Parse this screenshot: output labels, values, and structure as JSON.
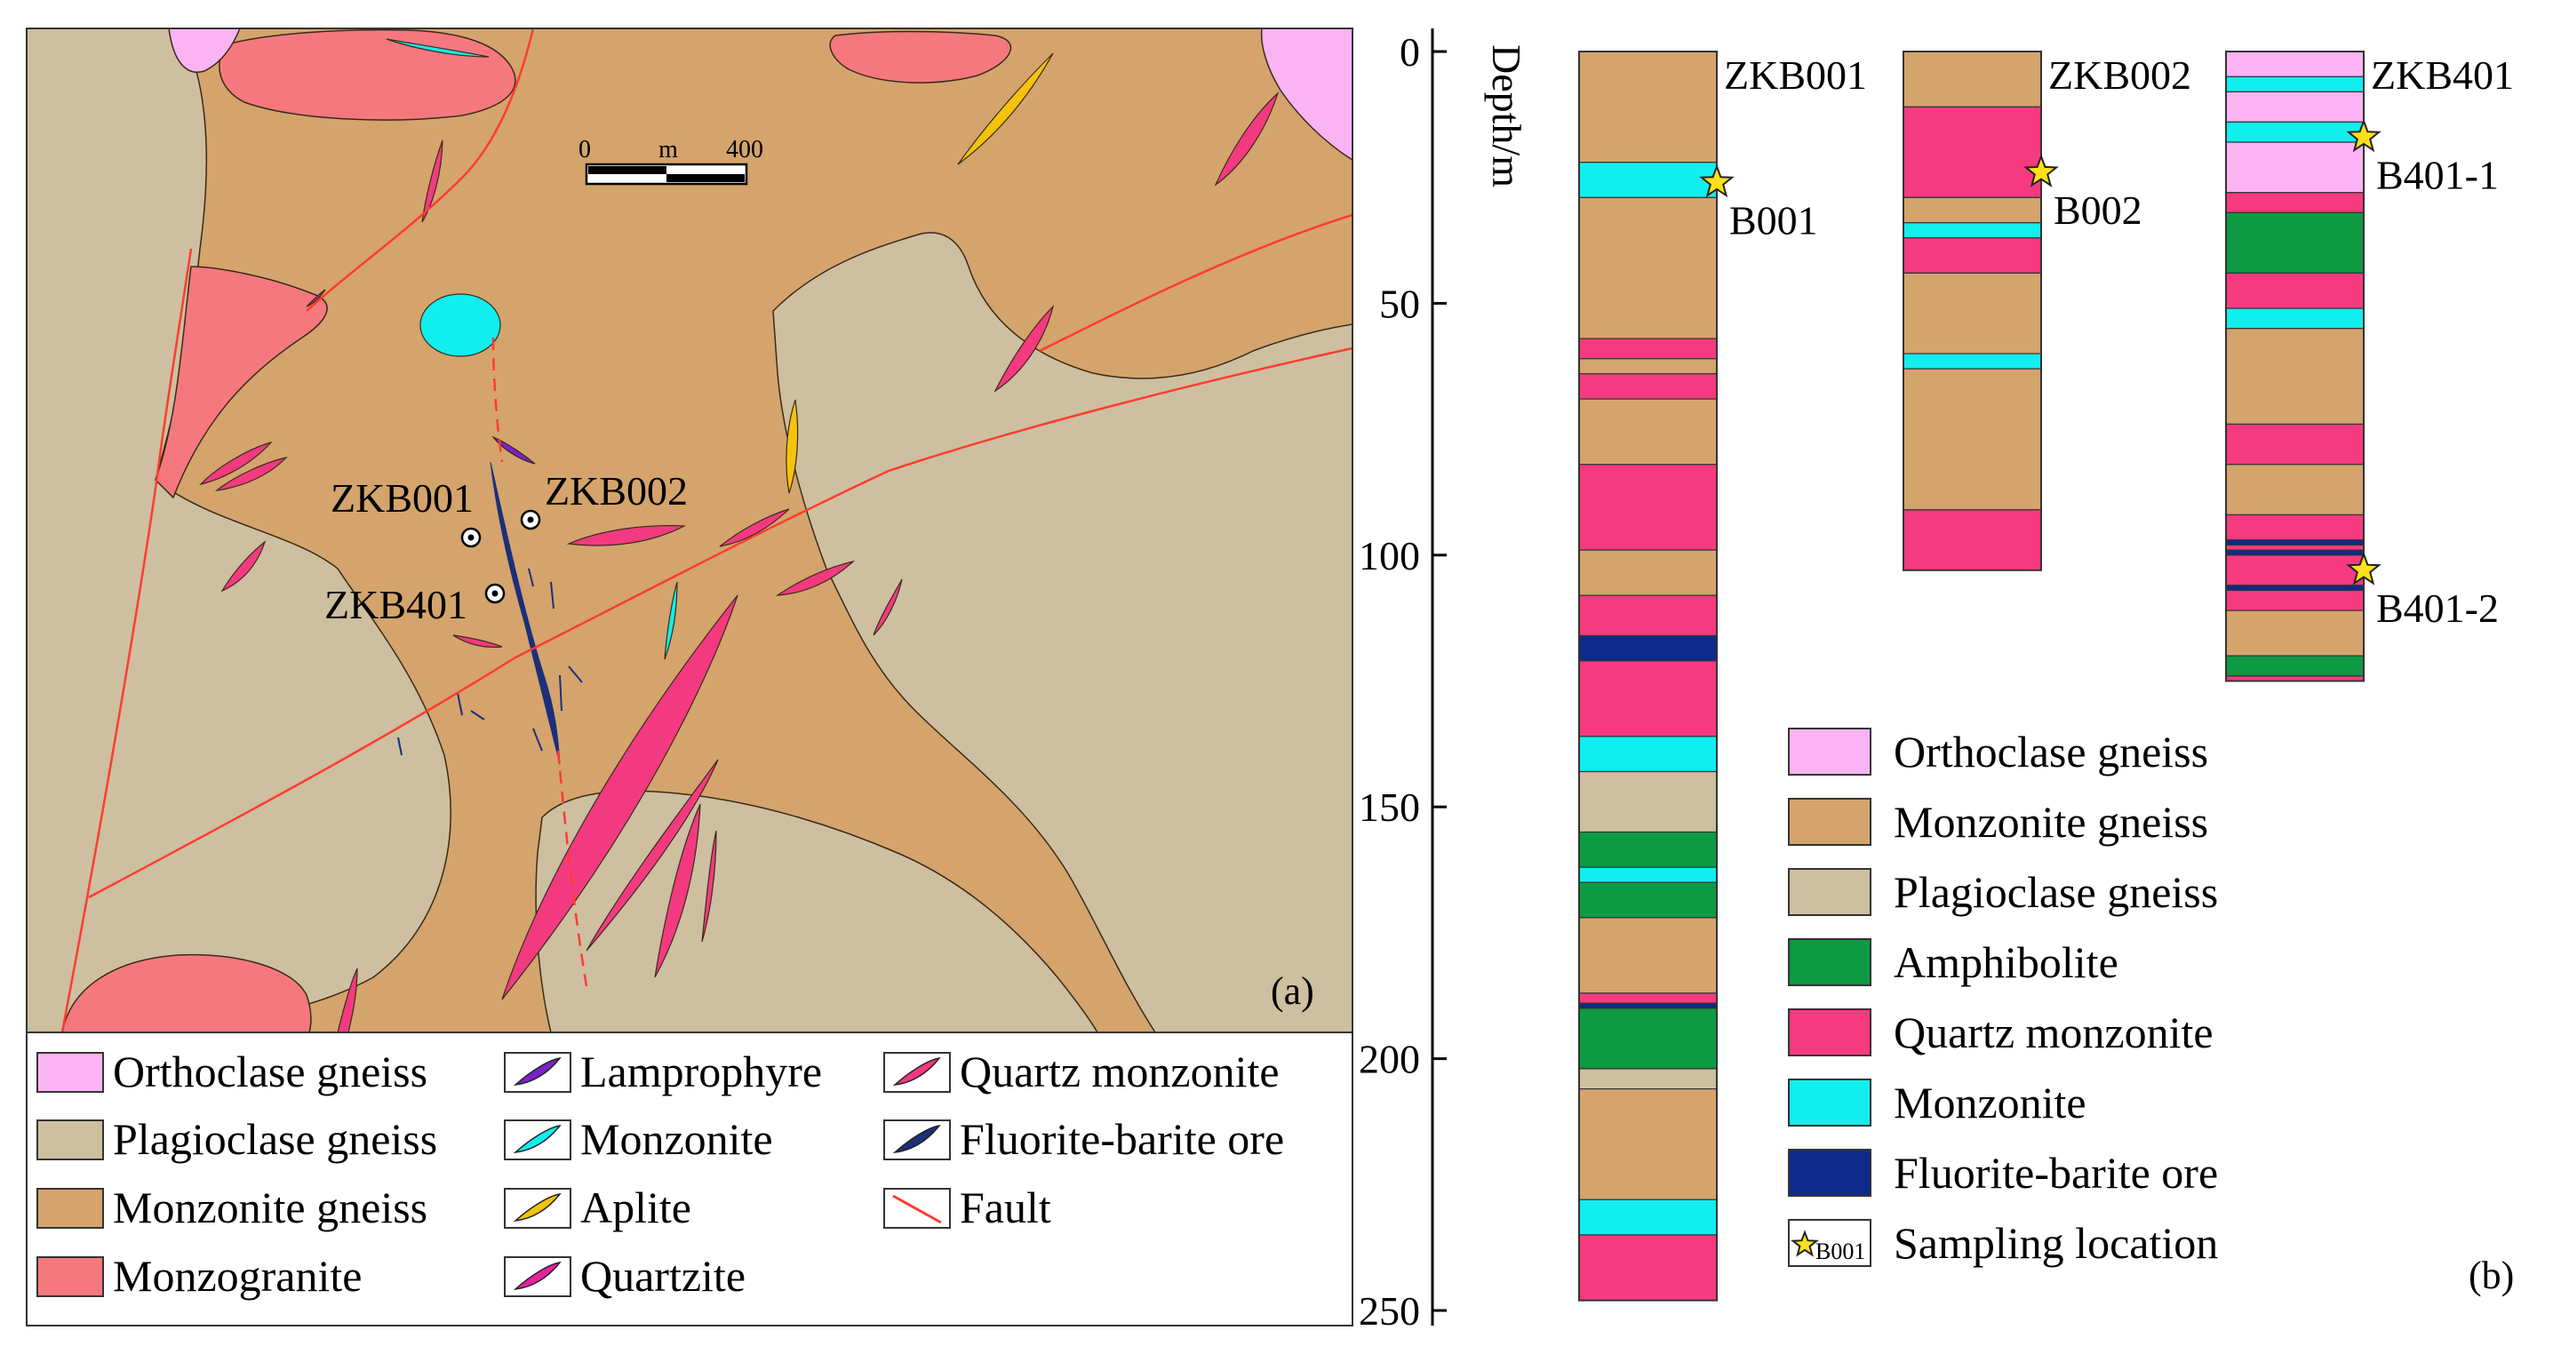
{
  "panel_a": {
    "label": "(a)",
    "scale_bar": {
      "start": "0",
      "unit": "m",
      "end": "400"
    },
    "drill_holes": [
      {
        "name": "ZKB001"
      },
      {
        "name": "ZKB002"
      },
      {
        "name": "ZKB401"
      }
    ],
    "legend": [
      {
        "label": "Orthoclase gneiss",
        "color": "#fbb3f4",
        "kind": "box"
      },
      {
        "label": "Plagioclase gneiss",
        "color": "#cdbf9f",
        "kind": "box"
      },
      {
        "label": "Monzonite gneiss",
        "color": "#d4a46c",
        "kind": "box"
      },
      {
        "label": "Monzogranite",
        "color": "#f6787f",
        "kind": "box"
      },
      {
        "label": "Lamprophyre",
        "color": "#7b22c8",
        "kind": "lens"
      },
      {
        "label": "Monzonite",
        "color": "#11eeee",
        "kind": "lens"
      },
      {
        "label": "Aplite",
        "color": "#f5c20c",
        "kind": "lens"
      },
      {
        "label": "Quartzite",
        "color": "#e7239e",
        "kind": "lens"
      },
      {
        "label": "Quartz monzonite",
        "color": "#f33a80",
        "kind": "lens"
      },
      {
        "label": "Fluorite-barite ore",
        "color": "#1b2f7a",
        "kind": "lens"
      },
      {
        "label": "Fault",
        "color": "#ff3b30",
        "kind": "line"
      }
    ]
  },
  "panel_b": {
    "label": "(b)",
    "axis_label": "Depth/m",
    "axis_ticks": [
      "0",
      "50",
      "100",
      "150",
      "200",
      "250"
    ],
    "depth_range": [
      0,
      250
    ],
    "columns": [
      {
        "name": "ZKB001",
        "total_depth": 248,
        "layers": [
          {
            "from": 0,
            "to": 22,
            "rock": "mg"
          },
          {
            "from": 22,
            "to": 29,
            "rock": "mz"
          },
          {
            "from": 29,
            "to": 57,
            "rock": "mg"
          },
          {
            "from": 57,
            "to": 61,
            "rock": "qm"
          },
          {
            "from": 61,
            "to": 64,
            "rock": "mg"
          },
          {
            "from": 64,
            "to": 69,
            "rock": "qm"
          },
          {
            "from": 69,
            "to": 82,
            "rock": "mg"
          },
          {
            "from": 82,
            "to": 99,
            "rock": "qm"
          },
          {
            "from": 99,
            "to": 108,
            "rock": "mg"
          },
          {
            "from": 108,
            "to": 116,
            "rock": "qm"
          },
          {
            "from": 116,
            "to": 121,
            "rock": "fb"
          },
          {
            "from": 121,
            "to": 136,
            "rock": "qm"
          },
          {
            "from": 136,
            "to": 143,
            "rock": "mz"
          },
          {
            "from": 143,
            "to": 155,
            "rock": "pg"
          },
          {
            "from": 155,
            "to": 162,
            "rock": "am"
          },
          {
            "from": 162,
            "to": 165,
            "rock": "mz"
          },
          {
            "from": 165,
            "to": 172,
            "rock": "am"
          },
          {
            "from": 172,
            "to": 187,
            "rock": "mg"
          },
          {
            "from": 187,
            "to": 189,
            "rock": "qm"
          },
          {
            "from": 189,
            "to": 190,
            "rock": "fb"
          },
          {
            "from": 190,
            "to": 202,
            "rock": "am"
          },
          {
            "from": 202,
            "to": 206,
            "rock": "pg"
          },
          {
            "from": 206,
            "to": 228,
            "rock": "mg"
          },
          {
            "from": 228,
            "to": 235,
            "rock": "mz"
          },
          {
            "from": 235,
            "to": 248,
            "rock": "qm"
          }
        ],
        "samples": [
          {
            "name": "B001",
            "depth": 26
          }
        ]
      },
      {
        "name": "ZKB002",
        "total_depth": 103,
        "layers": [
          {
            "from": 0,
            "to": 11,
            "rock": "mg"
          },
          {
            "from": 11,
            "to": 29,
            "rock": "qm"
          },
          {
            "from": 29,
            "to": 34,
            "rock": "mg"
          },
          {
            "from": 34,
            "to": 37,
            "rock": "mz"
          },
          {
            "from": 37,
            "to": 44,
            "rock": "qm"
          },
          {
            "from": 44,
            "to": 60,
            "rock": "mg"
          },
          {
            "from": 60,
            "to": 63,
            "rock": "mz"
          },
          {
            "from": 63,
            "to": 91,
            "rock": "mg"
          },
          {
            "from": 91,
            "to": 103,
            "rock": "qm"
          }
        ],
        "samples": [
          {
            "name": "B002",
            "depth": 24
          }
        ]
      },
      {
        "name": "ZKB401",
        "total_depth": 125,
        "layers": [
          {
            "from": 0,
            "to": 5,
            "rock": "og"
          },
          {
            "from": 5,
            "to": 8,
            "rock": "mz"
          },
          {
            "from": 8,
            "to": 14,
            "rock": "og"
          },
          {
            "from": 14,
            "to": 18,
            "rock": "mz"
          },
          {
            "from": 18,
            "to": 28,
            "rock": "og"
          },
          {
            "from": 28,
            "to": 32,
            "rock": "qm"
          },
          {
            "from": 32,
            "to": 44,
            "rock": "am"
          },
          {
            "from": 44,
            "to": 51,
            "rock": "qm"
          },
          {
            "from": 51,
            "to": 55,
            "rock": "mz"
          },
          {
            "from": 55,
            "to": 74,
            "rock": "mg"
          },
          {
            "from": 74,
            "to": 82,
            "rock": "qm"
          },
          {
            "from": 82,
            "to": 92,
            "rock": "mg"
          },
          {
            "from": 92,
            "to": 97,
            "rock": "qm"
          },
          {
            "from": 97,
            "to": 98,
            "rock": "fb"
          },
          {
            "from": 98,
            "to": 99,
            "rock": "qm"
          },
          {
            "from": 99,
            "to": 100,
            "rock": "fb"
          },
          {
            "from": 100,
            "to": 106,
            "rock": "qm"
          },
          {
            "from": 106,
            "to": 107,
            "rock": "fb"
          },
          {
            "from": 107,
            "to": 111,
            "rock": "qm"
          },
          {
            "from": 111,
            "to": 120,
            "rock": "mg"
          },
          {
            "from": 120,
            "to": 124,
            "rock": "am"
          },
          {
            "from": 124,
            "to": 125,
            "rock": "qm"
          }
        ],
        "samples": [
          {
            "name": "B401-1",
            "depth": 17
          },
          {
            "name": "B401-2",
            "depth": 103
          }
        ]
      }
    ],
    "legend": [
      {
        "label": "Orthoclase gneiss",
        "rock": "og"
      },
      {
        "label": "Monzonite gneiss",
        "rock": "mg"
      },
      {
        "label": "Plagioclase gneiss",
        "rock": "pg"
      },
      {
        "label": "Amphibolite",
        "rock": "am"
      },
      {
        "label": "Quartz monzonite",
        "rock": "qm"
      },
      {
        "label": "Monzonite",
        "rock": "mz"
      },
      {
        "label": "Fluorite-barite ore",
        "rock": "fb"
      },
      {
        "label": "Sampling location",
        "rock": "sample",
        "icon_text": "B001"
      }
    ],
    "rock_colors": {
      "og": "#fbb3f4",
      "mg": "#d4a46c",
      "pg": "#cdbf9f",
      "am": "#0d9a43",
      "qm": "#f53a80",
      "mz": "#11eeee",
      "fb": "#0e2a8a",
      "sample": "#ffe119"
    }
  }
}
